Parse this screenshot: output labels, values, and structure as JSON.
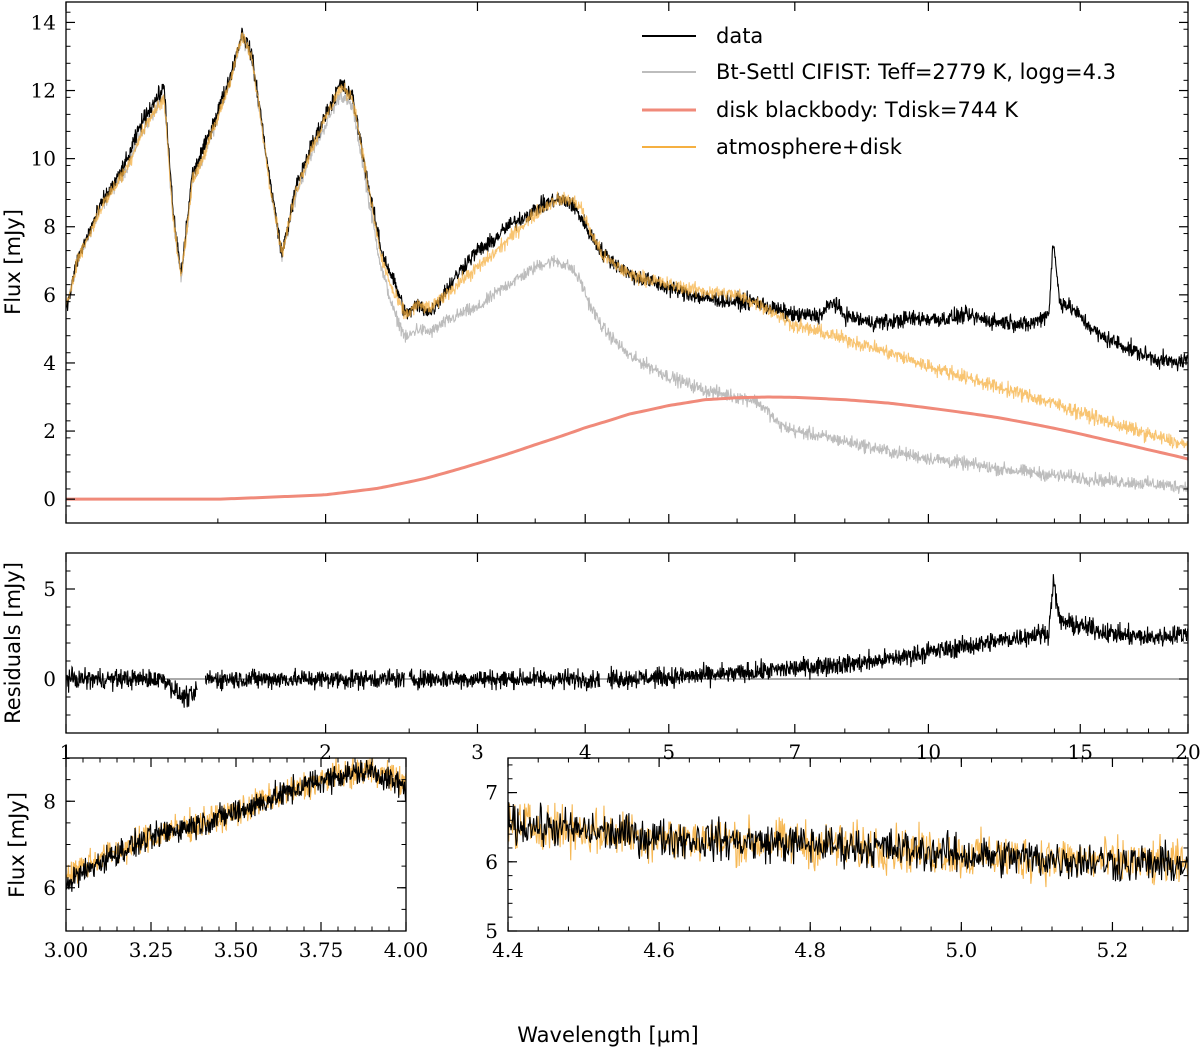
{
  "figure": {
    "shared_xlabel": "Wavelength [μm]",
    "colors": {
      "data": "#000000",
      "model": "#bdbdbd",
      "disk": "#f08a7a",
      "combined": "#f5b041",
      "overlap": "#7a4410",
      "zero_line": "#555555"
    }
  },
  "chart_data": [
    {
      "id": "main",
      "type": "line",
      "xscale": "log",
      "xlim": [
        1,
        20
      ],
      "ylim": [
        -0.7,
        14.6
      ],
      "ylabel": "Flux [mJy]",
      "yticks": [
        0,
        2,
        4,
        6,
        8,
        10,
        12,
        14
      ],
      "xticks": [
        1,
        2,
        3,
        4,
        5,
        7,
        10,
        15,
        20
      ],
      "legend_position": "top-right",
      "series": [
        {
          "name": "data",
          "color": "#000000",
          "noise": 0.35,
          "x": [
            1.0,
            1.03,
            1.07,
            1.1,
            1.14,
            1.18,
            1.22,
            1.26,
            1.3,
            1.33,
            1.36,
            1.4,
            1.45,
            1.5,
            1.55,
            1.6,
            1.64,
            1.68,
            1.72,
            1.78,
            1.85,
            1.92,
            2.0,
            2.08,
            2.15,
            2.2,
            2.25,
            2.32,
            2.4,
            2.48,
            2.55,
            2.65,
            2.75,
            2.9,
            3.0,
            3.1,
            3.25,
            3.4,
            3.55,
            3.7,
            3.85,
            3.95,
            4.05,
            4.2,
            4.5,
            5.0,
            5.5,
            6.0,
            6.3,
            6.6,
            7.0,
            7.5,
            7.75,
            8.0,
            8.5,
            9.0,
            9.5,
            10.0,
            10.5,
            11.0,
            12.0,
            12.5,
            13.0,
            13.5,
            13.8,
            13.95,
            14.2,
            14.5,
            14.8,
            15.2,
            15.8,
            16.5,
            17.5,
            18.5,
            19.3,
            20.0
          ],
          "y": [
            5.5,
            7.0,
            8.0,
            8.7,
            9.3,
            10.0,
            11.0,
            11.6,
            12.1,
            8.5,
            6.6,
            9.5,
            10.4,
            11.4,
            12.4,
            13.7,
            13.1,
            11.4,
            9.5,
            7.2,
            9.2,
            10.3,
            11.3,
            12.2,
            11.8,
            10.4,
            9.0,
            7.3,
            6.4,
            5.4,
            5.7,
            5.5,
            6.1,
            6.9,
            7.3,
            7.5,
            8.0,
            8.3,
            8.6,
            8.8,
            8.7,
            8.3,
            7.8,
            7.2,
            6.6,
            6.2,
            5.9,
            5.8,
            5.8,
            5.6,
            5.4,
            5.4,
            5.8,
            5.4,
            5.2,
            5.2,
            5.3,
            5.3,
            5.3,
            5.4,
            5.2,
            5.2,
            5.1,
            5.3,
            5.5,
            7.6,
            5.8,
            5.7,
            5.5,
            5.2,
            4.8,
            4.6,
            4.3,
            4.1,
            4.0,
            4.1
          ]
        },
        {
          "name": "Bt-Settl CIFIST: Teff=2779 K, logg=4.3",
          "color": "#bdbdbd",
          "noise": 0.28,
          "x": [
            1.0,
            1.03,
            1.07,
            1.1,
            1.14,
            1.18,
            1.22,
            1.26,
            1.3,
            1.33,
            1.36,
            1.4,
            1.45,
            1.5,
            1.55,
            1.6,
            1.64,
            1.68,
            1.72,
            1.78,
            1.85,
            1.92,
            2.0,
            2.08,
            2.15,
            2.2,
            2.25,
            2.32,
            2.4,
            2.48,
            2.55,
            2.65,
            2.75,
            2.9,
            3.0,
            3.1,
            3.25,
            3.4,
            3.55,
            3.7,
            3.85,
            3.95,
            4.05,
            4.2,
            4.5,
            5.0,
            5.5,
            6.0,
            6.3,
            6.5,
            6.7,
            7.0,
            8.0,
            9.0,
            10.0,
            12.0,
            14.0,
            16.0,
            18.0,
            20.0
          ],
          "y": [
            5.6,
            7.0,
            7.9,
            8.6,
            9.2,
            9.8,
            10.7,
            11.3,
            11.8,
            8.3,
            6.5,
            9.3,
            10.2,
            11.2,
            12.3,
            13.6,
            13.0,
            11.3,
            9.4,
            7.1,
            9.0,
            10.1,
            11.0,
            11.9,
            11.5,
            10.1,
            8.6,
            6.8,
            5.5,
            4.7,
            5.0,
            4.9,
            5.2,
            5.5,
            5.6,
            5.9,
            6.3,
            6.6,
            6.9,
            7.0,
            6.8,
            6.4,
            5.7,
            5.0,
            4.2,
            3.6,
            3.2,
            3.0,
            2.9,
            2.6,
            2.2,
            2.0,
            1.7,
            1.4,
            1.2,
            0.9,
            0.7,
            0.55,
            0.45,
            0.35
          ]
        },
        {
          "name": "disk blackbody: Tdisk=744 K",
          "color": "#f08a7a",
          "noise": 0,
          "x": [
            1.0,
            1.5,
            2.0,
            2.3,
            2.6,
            3.0,
            3.5,
            4.0,
            4.5,
            5.0,
            5.5,
            6.0,
            6.5,
            7.0,
            8.0,
            9.0,
            10.0,
            12.0,
            14.0,
            16.0,
            18.0,
            20.0
          ],
          "y": [
            0.0,
            0.0,
            0.13,
            0.32,
            0.6,
            1.05,
            1.6,
            2.1,
            2.5,
            2.75,
            2.92,
            2.98,
            3.0,
            2.99,
            2.92,
            2.82,
            2.68,
            2.4,
            2.08,
            1.75,
            1.45,
            1.18
          ]
        },
        {
          "name": "atmosphere+disk",
          "color": "#f5b041",
          "noise": 0.3,
          "x": [
            1.0,
            1.03,
            1.07,
            1.1,
            1.14,
            1.18,
            1.22,
            1.26,
            1.3,
            1.33,
            1.36,
            1.4,
            1.45,
            1.5,
            1.55,
            1.6,
            1.64,
            1.68,
            1.72,
            1.78,
            1.85,
            1.92,
            2.0,
            2.08,
            2.15,
            2.2,
            2.25,
            2.32,
            2.4,
            2.48,
            2.55,
            2.65,
            2.75,
            2.9,
            3.0,
            3.1,
            3.25,
            3.4,
            3.55,
            3.7,
            3.85,
            3.95,
            4.05,
            4.2,
            4.5,
            5.0,
            5.5,
            6.0,
            6.5,
            7.0,
            8.0,
            9.0,
            10.0,
            12.0,
            14.0,
            16.0,
            18.0,
            20.0
          ],
          "y": [
            5.6,
            7.0,
            7.9,
            8.6,
            9.2,
            9.8,
            10.7,
            11.3,
            11.8,
            8.3,
            6.5,
            9.3,
            10.2,
            11.2,
            12.3,
            13.6,
            13.0,
            11.3,
            9.4,
            7.2,
            9.1,
            10.2,
            11.2,
            12.1,
            11.8,
            10.4,
            8.9,
            7.1,
            6.0,
            5.4,
            5.7,
            5.6,
            6.0,
            6.5,
            6.8,
            7.1,
            7.6,
            8.1,
            8.5,
            8.8,
            8.8,
            8.6,
            7.9,
            7.1,
            6.6,
            6.3,
            6.1,
            6.0,
            5.6,
            5.1,
            4.7,
            4.3,
            3.9,
            3.3,
            2.8,
            2.3,
            1.9,
            1.55
          ]
        }
      ]
    },
    {
      "id": "residuals",
      "type": "line",
      "xscale": "log",
      "xlim": [
        1,
        20
      ],
      "ylim": [
        -3.0,
        7.0
      ],
      "ylabel": "Residuals [mJy]",
      "yticks": [
        0,
        5
      ],
      "xticks": [
        1,
        2,
        3,
        4,
        5,
        7,
        10,
        15,
        20
      ],
      "xticklabels": [
        "1",
        "2",
        "3",
        "4",
        "5",
        "7",
        "10",
        "15",
        "20"
      ],
      "gaps": [
        [
          1.42,
          1.45
        ],
        [
          2.47,
          2.5
        ],
        [
          4.16,
          4.24
        ]
      ],
      "series": [
        {
          "name": "residuals",
          "color": "#000000",
          "noise": 0.8,
          "x": [
            1.0,
            1.3,
            1.36,
            1.4,
            1.45,
            1.9,
            2.0,
            2.3,
            2.47,
            2.5,
            3.0,
            3.4,
            4.16,
            4.24,
            5.0,
            6.0,
            7.0,
            7.7,
            8.0,
            9.0,
            10.0,
            11.0,
            12.0,
            13.0,
            13.8,
            13.95,
            14.2,
            14.8,
            15.5,
            16.0,
            17.0,
            18.0,
            20.0
          ],
          "y": [
            0.0,
            0.0,
            -1.0,
            -1.0,
            0.0,
            0.0,
            0.0,
            0.0,
            0.0,
            0.0,
            0.0,
            0.0,
            0.0,
            0.0,
            0.1,
            0.3,
            0.6,
            0.8,
            0.8,
            1.1,
            1.5,
            1.8,
            2.1,
            2.4,
            2.6,
            5.5,
            3.2,
            3.0,
            2.8,
            2.6,
            2.4,
            2.3,
            2.5
          ]
        }
      ]
    },
    {
      "id": "zoom-left",
      "type": "line",
      "xscale": "linear",
      "xlim": [
        3.0,
        4.0
      ],
      "ylim": [
        5.0,
        9.0
      ],
      "ylabel": "Flux [mJy]",
      "yticks": [
        6,
        8
      ],
      "xticks": [
        3.0,
        3.25,
        3.5,
        3.75,
        4.0
      ],
      "xticklabels": [
        "3.00",
        "3.25",
        "3.50",
        "3.75",
        "4.00"
      ],
      "series": [
        {
          "name": "atmosphere+disk",
          "color": "#f5b041",
          "noise": 0.5,
          "x": [
            3.0,
            3.1,
            3.2,
            3.3,
            3.4,
            3.5,
            3.6,
            3.7,
            3.8,
            3.9,
            4.0
          ],
          "y": [
            6.3,
            6.7,
            7.0,
            7.3,
            7.5,
            7.75,
            8.05,
            8.35,
            8.6,
            8.75,
            8.4
          ]
        },
        {
          "name": "data",
          "color": "#000000",
          "noise": 0.45,
          "x": [
            3.0,
            3.1,
            3.2,
            3.3,
            3.4,
            3.5,
            3.6,
            3.7,
            3.8,
            3.9,
            4.0
          ],
          "y": [
            6.1,
            6.6,
            7.0,
            7.3,
            7.5,
            7.75,
            8.05,
            8.35,
            8.6,
            8.7,
            8.3
          ]
        }
      ]
    },
    {
      "id": "zoom-right",
      "type": "line",
      "xscale": "linear",
      "xlim": [
        4.4,
        5.3
      ],
      "ylim": [
        5.0,
        7.5
      ],
      "ylabel": "",
      "yticks": [
        5,
        6,
        7
      ],
      "xticks": [
        4.4,
        4.6,
        4.8,
        5.0,
        5.2
      ],
      "xticklabels": [
        "4.4",
        "4.6",
        "4.8",
        "5.0",
        "5.2"
      ],
      "series": [
        {
          "name": "atmosphere+disk",
          "color": "#f5b041",
          "noise": 0.5,
          "x": [
            4.4,
            4.5,
            4.6,
            4.7,
            4.8,
            4.9,
            5.0,
            5.1,
            5.2,
            5.3
          ],
          "y": [
            6.55,
            6.45,
            6.35,
            6.3,
            6.25,
            6.2,
            6.1,
            6.05,
            6.0,
            5.95
          ]
        },
        {
          "name": "data",
          "color": "#000000",
          "noise": 0.42,
          "x": [
            4.4,
            4.5,
            4.6,
            4.7,
            4.8,
            4.9,
            5.0,
            5.1,
            5.2,
            5.3
          ],
          "y": [
            6.55,
            6.45,
            6.35,
            6.3,
            6.25,
            6.2,
            6.1,
            6.05,
            6.0,
            5.95
          ]
        }
      ]
    }
  ]
}
